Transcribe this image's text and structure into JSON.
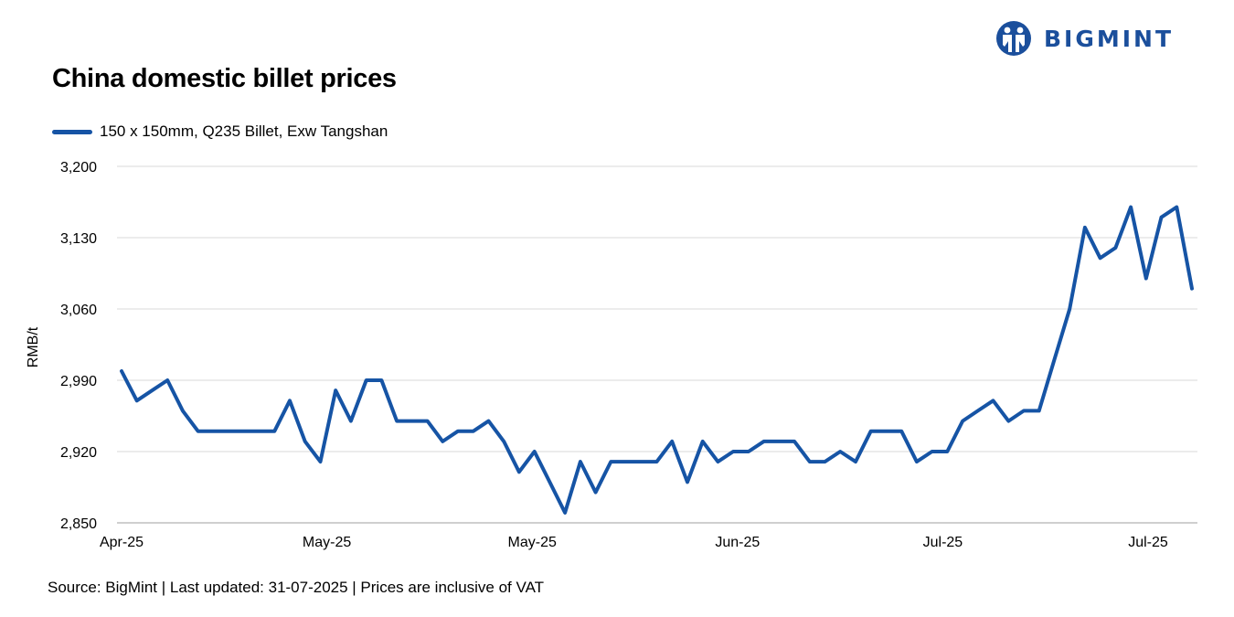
{
  "brand": {
    "name": "BIGMINT",
    "color": "#1b4f9c"
  },
  "chart_data": {
    "type": "line",
    "title": "China domestic billet prices",
    "ylabel": "RMB/t",
    "xlabel": "",
    "ylim": [
      2850,
      3200
    ],
    "yticks": [
      "3,200",
      "3,130",
      "3,060",
      "2,990",
      "2,920",
      "2,850"
    ],
    "yticks_values": [
      3200,
      3130,
      3060,
      2990,
      2920,
      2850
    ],
    "xticks": [
      "Apr-25",
      "May-25",
      "May-25",
      "Jun-25",
      "Jul-25",
      "Jul-25"
    ],
    "grid": true,
    "legend_position": "top-left",
    "series": [
      {
        "name": "150 x 150mm, Q235 Billet, Exw Tangshan",
        "color": "#1654a5",
        "values": [
          2999,
          2970,
          2980,
          2990,
          2960,
          2940,
          2940,
          2940,
          2940,
          2940,
          2940,
          2970,
          2930,
          2910,
          2980,
          2950,
          2990,
          2990,
          2950,
          2950,
          2950,
          2930,
          2940,
          2940,
          2950,
          2930,
          2900,
          2920,
          2890,
          2860,
          2910,
          2880,
          2910,
          2910,
          2910,
          2910,
          2930,
          2890,
          2930,
          2910,
          2920,
          2920,
          2930,
          2930,
          2930,
          2910,
          2910,
          2920,
          2910,
          2940,
          2940,
          2940,
          2910,
          2920,
          2920,
          2950,
          2960,
          2970,
          2950,
          2960,
          2960,
          3010,
          3060,
          3140,
          3110,
          3120,
          3160,
          3090,
          3150,
          3160,
          3080
        ]
      }
    ]
  },
  "footer": {
    "source": "Source: BigMint | Last updated: 31-07-2025 | Prices are inclusive of VAT"
  }
}
